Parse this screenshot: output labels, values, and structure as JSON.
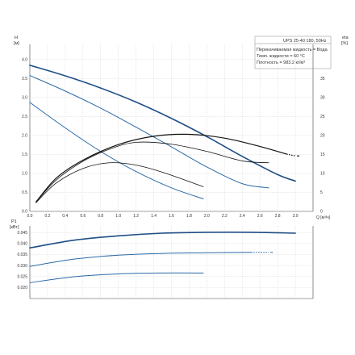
{
  "chart_data": [
    {
      "type": "line",
      "title": "UPS 25-40 180, 50Hz",
      "info_lines": [
        "Перекачиваемая жидкость = Вода",
        "Темп. жидкости = 60 °C",
        "Плотность = 983.2 кг/м³"
      ],
      "ylabel_left": [
        "H",
        "[м]"
      ],
      "ylabel_right": [
        "eta",
        "[%]"
      ],
      "xlabel": "Q [м³/ч]",
      "xlim": [
        0,
        3.2
      ],
      "ylim_left": [
        0,
        4.4
      ],
      "ylim_right": [
        0,
        44
      ],
      "grid": true,
      "x_ticks": [
        "0.0",
        "0.2",
        "0.4",
        "0.6",
        "0.8",
        "1.0",
        "1.2",
        "1.4",
        "1.6",
        "1.8",
        "2.0",
        "2.2",
        "2.4",
        "2.6",
        "2.8",
        "3.0"
      ],
      "y_ticks_left": [
        "0.0",
        "0.5",
        "1.0",
        "1.5",
        "2.0",
        "2.5",
        "3.0",
        "3.5",
        "4.0"
      ],
      "y_ticks_right": [
        "0",
        "5",
        "10",
        "15",
        "20",
        "25",
        "30",
        "35"
      ],
      "head_series": [
        {
          "speed": 3,
          "color": "#1e4e86",
          "width": 1.6,
          "x": [
            0.0,
            0.4,
            0.8,
            1.2,
            1.6,
            2.0,
            2.4,
            2.8,
            3.0
          ],
          "y": [
            3.85,
            3.57,
            3.25,
            2.88,
            2.45,
            1.97,
            1.45,
            0.97,
            0.8
          ],
          "dashed_from": 2.85
        },
        {
          "speed": 2,
          "color": "#2c6aa6",
          "width": 1.0,
          "x": [
            0.0,
            0.4,
            0.8,
            1.2,
            1.6,
            2.0,
            2.4,
            2.7
          ],
          "y": [
            3.58,
            3.17,
            2.72,
            2.22,
            1.7,
            1.17,
            0.73,
            0.62
          ],
          "dashed_from": 2.5
        },
        {
          "speed": 1,
          "color": "#2c6aa6",
          "width": 1.0,
          "x": [
            0.0,
            0.4,
            0.8,
            1.2,
            1.6,
            1.96
          ],
          "y": [
            2.87,
            2.2,
            1.58,
            1.05,
            0.62,
            0.33
          ],
          "dashed_from": null
        }
      ],
      "eta_series": [
        {
          "speed": 3,
          "color": "#111111",
          "width": 1.2,
          "x": [
            0.07,
            0.3,
            0.6,
            1.0,
            1.4,
            1.8,
            2.2,
            2.6,
            2.9,
            3.0
          ],
          "y": [
            2.5,
            8.8,
            13.5,
            17.6,
            19.8,
            20.3,
            19.3,
            17.1,
            15.1,
            14.6
          ],
          "dashed_from": 2.85
        },
        {
          "speed": 2,
          "color": "#111111",
          "width": 0.8,
          "x": [
            0.07,
            0.3,
            0.6,
            0.9,
            1.2,
            1.6,
            2.0,
            2.4,
            2.7
          ],
          "y": [
            2.5,
            8.3,
            13.2,
            16.4,
            18.2,
            17.7,
            15.8,
            13.3,
            12.8
          ],
          "dashed_from": 2.5
        },
        {
          "speed": 1,
          "color": "#111111",
          "width": 0.8,
          "x": [
            0.07,
            0.3,
            0.6,
            0.9,
            1.2,
            1.5,
            1.96
          ],
          "y": [
            2.3,
            7.5,
            11.3,
            12.8,
            12.2,
            10.3,
            6.5
          ],
          "dashed_from": null
        }
      ]
    },
    {
      "type": "line",
      "ylabel": [
        "P1",
        "[кВт]"
      ],
      "xlim": [
        0,
        3.2
      ],
      "ylim": [
        0.015,
        0.048
      ],
      "grid": true,
      "y_ticks": [
        "0.045",
        "0.040",
        "0.035",
        "0.030",
        "0.025",
        "0.020"
      ],
      "series": [
        {
          "speed": 3,
          "color": "#1e4e86",
          "width": 1.6,
          "x": [
            0.0,
            0.5,
            1.0,
            1.5,
            2.0,
            2.5,
            3.0
          ],
          "y": [
            0.038,
            0.0415,
            0.0435,
            0.0447,
            0.0451,
            0.0451,
            0.0447
          ],
          "dashed_from": 2.85
        },
        {
          "speed": 2,
          "color": "#2c6aa6",
          "width": 1.0,
          "x": [
            0.0,
            0.5,
            1.0,
            1.5,
            2.0,
            2.5,
            2.7
          ],
          "y": [
            0.0296,
            0.0329,
            0.0347,
            0.0355,
            0.0358,
            0.036,
            0.036
          ],
          "dashed_from": 2.5
        },
        {
          "speed": 1,
          "color": "#2c6aa6",
          "width": 1.0,
          "x": [
            0.0,
            0.5,
            1.0,
            1.5,
            1.96
          ],
          "y": [
            0.0222,
            0.0249,
            0.0262,
            0.0266,
            0.0266
          ],
          "dashed_from": null
        }
      ]
    }
  ]
}
